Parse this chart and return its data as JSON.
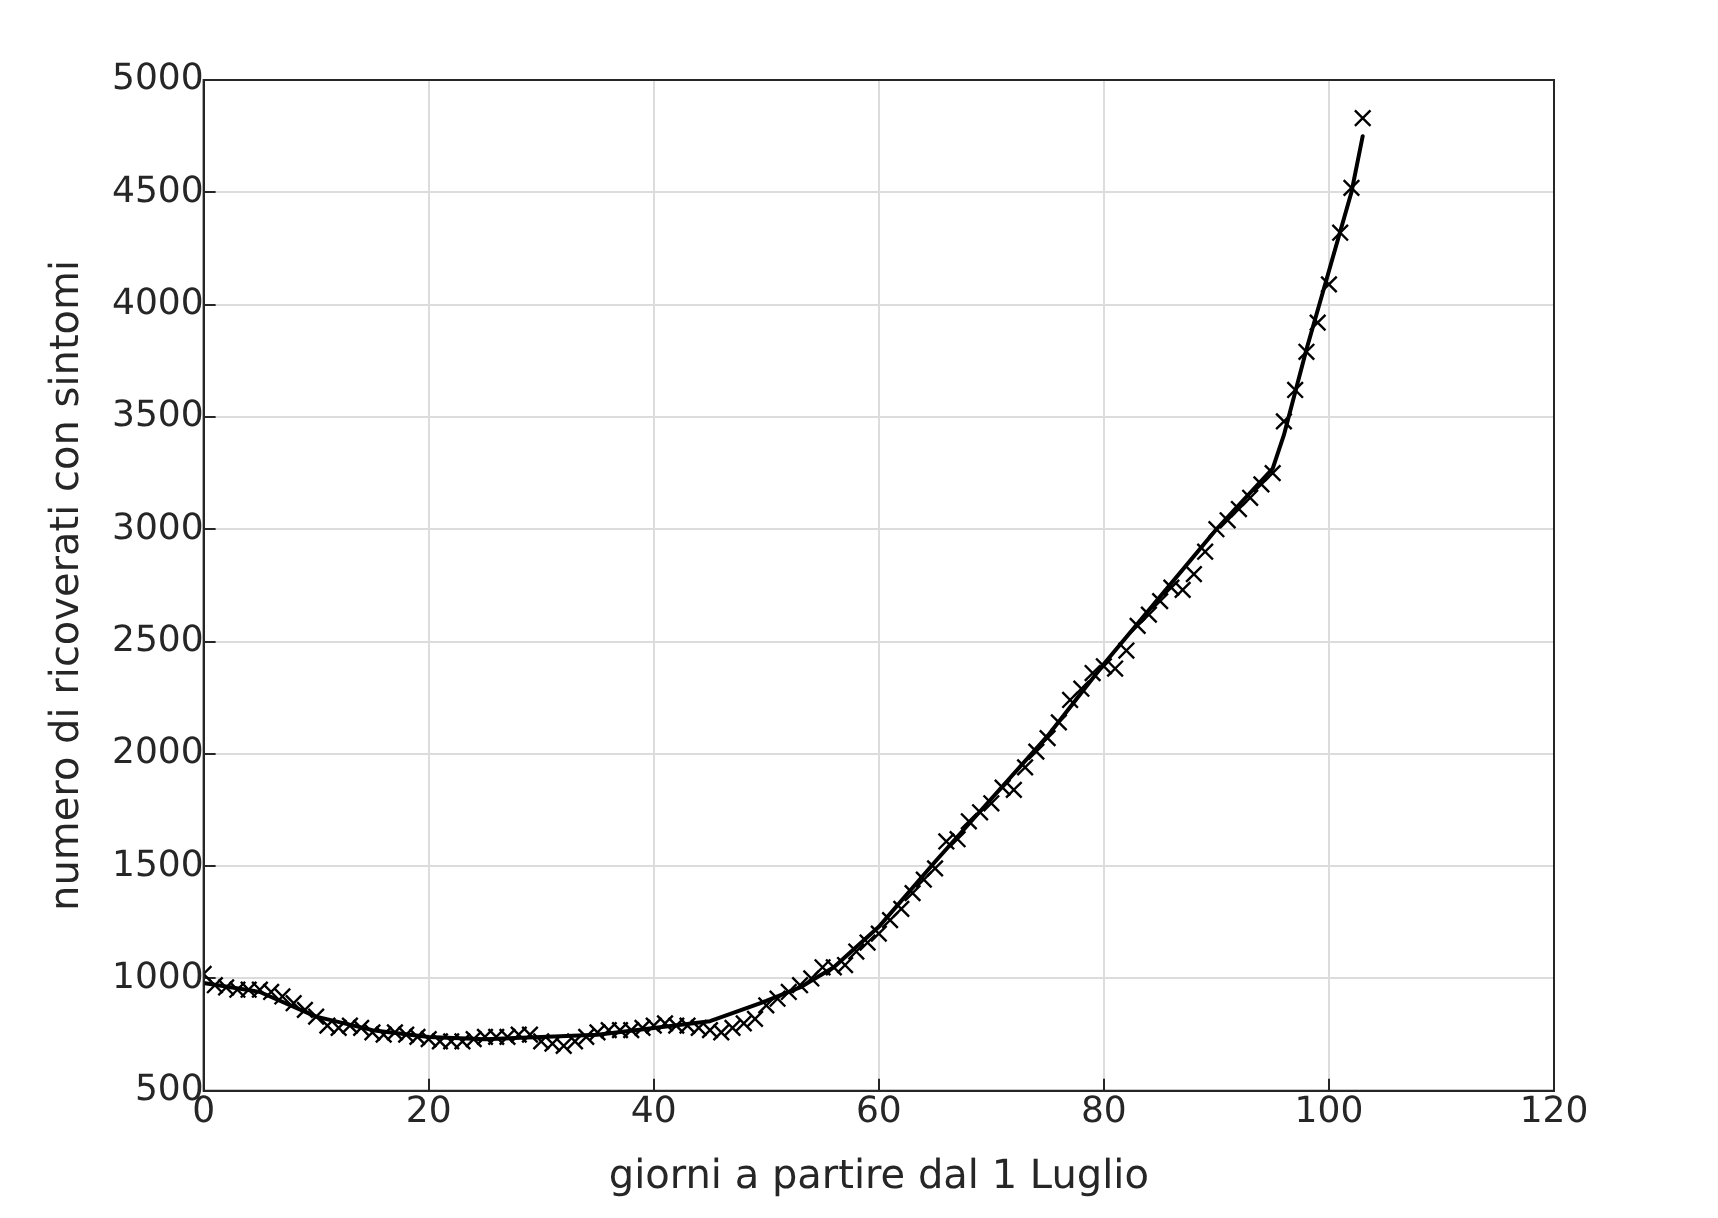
{
  "chart_data": {
    "type": "scatter",
    "xlabel": "giorni a partire dal 1 Luglio",
    "ylabel": "numero di ricoverati con sintomi",
    "xlim": [
      0,
      120
    ],
    "xticks": [
      0,
      20,
      40,
      60,
      80,
      100,
      120
    ],
    "ylim": [
      500,
      5000
    ],
    "yticks": [
      500,
      1000,
      1500,
      2000,
      2500,
      3000,
      3500,
      4000,
      4500,
      5000
    ],
    "grid": true,
    "legend": false,
    "series": [
      {
        "type": "scatter",
        "marker": "cross",
        "color": "#000000",
        "x": [
          0,
          1,
          2,
          3,
          4,
          5,
          6,
          7,
          8,
          9,
          10,
          11,
          12,
          13,
          14,
          15,
          16,
          17,
          18,
          19,
          20,
          21,
          22,
          23,
          24,
          25,
          26,
          27,
          28,
          29,
          30,
          31,
          32,
          33,
          34,
          35,
          36,
          37,
          38,
          39,
          40,
          41,
          42,
          43,
          44,
          45,
          46,
          47,
          48,
          49,
          50,
          51,
          52,
          53,
          54,
          55,
          56,
          57,
          58,
          59,
          60,
          61,
          62,
          63,
          64,
          65,
          66,
          67,
          68,
          69,
          70,
          71,
          72,
          73,
          74,
          75,
          76,
          77,
          78,
          79,
          80,
          81,
          82,
          83,
          84,
          85,
          86,
          87,
          88,
          89,
          90,
          91,
          92,
          93,
          94,
          95,
          96,
          97,
          98,
          99,
          100,
          101,
          102,
          103
        ],
        "values": [
          1020,
          970,
          960,
          950,
          950,
          950,
          940,
          920,
          890,
          860,
          830,
          790,
          780,
          790,
          780,
          760,
          750,
          760,
          750,
          740,
          730,
          720,
          720,
          720,
          730,
          740,
          740,
          740,
          750,
          750,
          720,
          710,
          700,
          720,
          740,
          760,
          770,
          770,
          770,
          780,
          790,
          800,
          790,
          790,
          780,
          770,
          760,
          780,
          800,
          820,
          880,
          910,
          940,
          970,
          1000,
          1050,
          1050,
          1060,
          1120,
          1160,
          1200,
          1260,
          1310,
          1380,
          1440,
          1490,
          1610,
          1620,
          1700,
          1740,
          1780,
          1850,
          1840,
          1940,
          2010,
          2070,
          2140,
          2240,
          2290,
          2360,
          2390,
          2380,
          2460,
          2570,
          2620,
          2680,
          2740,
          2730,
          2800,
          2900,
          3000,
          3040,
          3090,
          3140,
          3200,
          3250,
          3480,
          3620,
          3790,
          3920,
          4090,
          4320,
          4520,
          4830
        ]
      },
      {
        "type": "line",
        "marker": "none",
        "line_style": "solid",
        "color": "#000000",
        "x": [
          0,
          5,
          10,
          15,
          20,
          25,
          30,
          35,
          40,
          45,
          50,
          53,
          56,
          60,
          65,
          70,
          75,
          80,
          85,
          90,
          95,
          96,
          98,
          100,
          102,
          103
        ],
        "values": [
          980,
          940,
          830,
          770,
          740,
          730,
          740,
          750,
          780,
          810,
          900,
          960,
          1050,
          1230,
          1520,
          1800,
          2080,
          2400,
          2700,
          3000,
          3270,
          3420,
          3800,
          4150,
          4500,
          4750
        ]
      }
    ]
  }
}
